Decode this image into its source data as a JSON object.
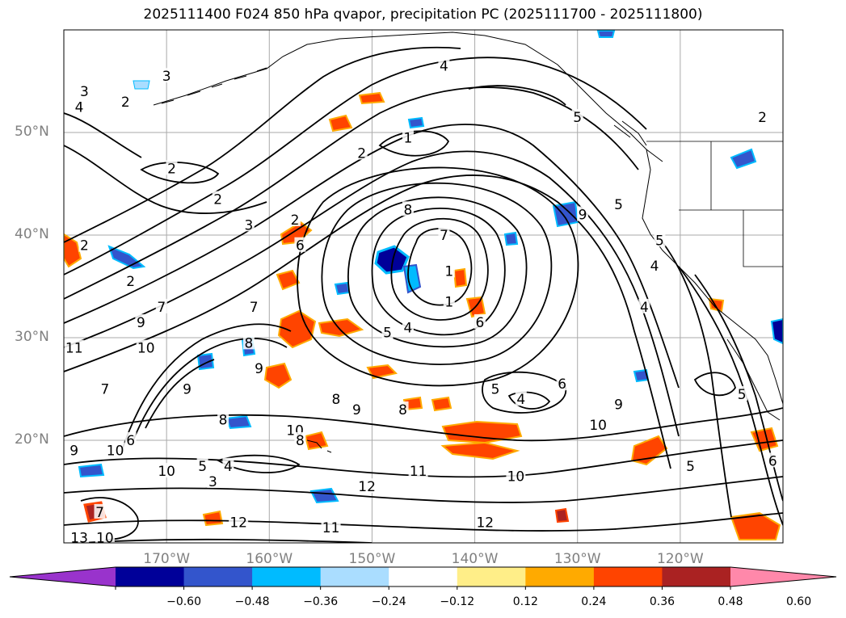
{
  "title": "2025111400 F024 850 hPa qvapor, precipitation PC (2025111700 - 2025111800)",
  "map": {
    "extent": {
      "lon_min": -180,
      "lon_max": -110,
      "lat_min": 10,
      "lat_max": 60
    },
    "lat_labels": [
      {
        "lat": 50,
        "text": "50°N"
      },
      {
        "lat": 40,
        "text": "40°N"
      },
      {
        "lat": 30,
        "text": "30°N"
      },
      {
        "lat": 20,
        "text": "20°N"
      }
    ],
    "lon_labels": [
      {
        "lon": -170,
        "text": "170°W"
      },
      {
        "lon": -160,
        "text": "160°W"
      },
      {
        "lon": -150,
        "text": "150°W"
      },
      {
        "lon": -140,
        "text": "140°W"
      },
      {
        "lon": -130,
        "text": "130°W"
      },
      {
        "lon": -120,
        "text": "120°W"
      }
    ],
    "gridlines": true,
    "contour_labels": [
      {
        "text": "4",
        "lon": -143,
        "lat": 56.5
      },
      {
        "text": "3",
        "lon": -170,
        "lat": 55.5
      },
      {
        "text": "3",
        "lon": -178,
        "lat": 54
      },
      {
        "text": "2",
        "lon": -174,
        "lat": 53
      },
      {
        "text": "4",
        "lon": -178.5,
        "lat": 52.5
      },
      {
        "text": "5",
        "lon": -130,
        "lat": 51.5
      },
      {
        "text": "2",
        "lon": -112,
        "lat": 51.5
      },
      {
        "text": "1",
        "lon": -146.5,
        "lat": 49.5
      },
      {
        "text": "2",
        "lon": -151,
        "lat": 48
      },
      {
        "text": "2",
        "lon": -169.5,
        "lat": 46.5
      },
      {
        "text": "2",
        "lon": -165,
        "lat": 43.5
      },
      {
        "text": "8",
        "lon": -146.5,
        "lat": 42.5
      },
      {
        "text": "9",
        "lon": -129.5,
        "lat": 42
      },
      {
        "text": "5",
        "lon": -126,
        "lat": 43
      },
      {
        "text": "3",
        "lon": -162,
        "lat": 41
      },
      {
        "text": "2",
        "lon": -157.5,
        "lat": 41.5
      },
      {
        "text": "2",
        "lon": -178,
        "lat": 39
      },
      {
        "text": "5",
        "lon": -122,
        "lat": 39.5
      },
      {
        "text": "6",
        "lon": -157,
        "lat": 39
      },
      {
        "text": "7",
        "lon": -143,
        "lat": 40
      },
      {
        "text": "1",
        "lon": -142.5,
        "lat": 36.5
      },
      {
        "text": "4",
        "lon": -122.5,
        "lat": 37
      },
      {
        "text": "2",
        "lon": -173.5,
        "lat": 35.5
      },
      {
        "text": "1",
        "lon": -142.5,
        "lat": 33.5
      },
      {
        "text": "7",
        "lon": -170.5,
        "lat": 33
      },
      {
        "text": "4",
        "lon": -123.5,
        "lat": 33
      },
      {
        "text": "7",
        "lon": -161.5,
        "lat": 33
      },
      {
        "text": "9",
        "lon": -172.5,
        "lat": 31.5
      },
      {
        "text": "6",
        "lon": -139.5,
        "lat": 31.5
      },
      {
        "text": "5",
        "lon": -148.5,
        "lat": 30.5
      },
      {
        "text": "4",
        "lon": -146.5,
        "lat": 31
      },
      {
        "text": "11",
        "lon": -179,
        "lat": 29
      },
      {
        "text": "10",
        "lon": -172,
        "lat": 29
      },
      {
        "text": "8",
        "lon": -162,
        "lat": 29.5
      },
      {
        "text": "9",
        "lon": -161,
        "lat": 27
      },
      {
        "text": "5",
        "lon": -138,
        "lat": 25
      },
      {
        "text": "6",
        "lon": -131.5,
        "lat": 25.5
      },
      {
        "text": "7",
        "lon": -176,
        "lat": 25
      },
      {
        "text": "9",
        "lon": -168,
        "lat": 25
      },
      {
        "text": "5",
        "lon": -114,
        "lat": 24.5
      },
      {
        "text": "8",
        "lon": -153.5,
        "lat": 24
      },
      {
        "text": "4",
        "lon": -135.5,
        "lat": 24
      },
      {
        "text": "9",
        "lon": -151.5,
        "lat": 23
      },
      {
        "text": "8",
        "lon": -147,
        "lat": 23
      },
      {
        "text": "9",
        "lon": -126,
        "lat": 23.5
      },
      {
        "text": "8",
        "lon": -164.5,
        "lat": 22
      },
      {
        "text": "10",
        "lon": -157.5,
        "lat": 21
      },
      {
        "text": "10",
        "lon": -128,
        "lat": 21.5
      },
      {
        "text": "6",
        "lon": -173.5,
        "lat": 20
      },
      {
        "text": "8",
        "lon": -157,
        "lat": 20
      },
      {
        "text": "9",
        "lon": -179,
        "lat": 19
      },
      {
        "text": "10",
        "lon": -175,
        "lat": 19
      },
      {
        "text": "5",
        "lon": -166.5,
        "lat": 17.5
      },
      {
        "text": "11",
        "lon": -145.5,
        "lat": 17
      },
      {
        "text": "4",
        "lon": -164,
        "lat": 17.5
      },
      {
        "text": "10",
        "lon": -170,
        "lat": 17
      },
      {
        "text": "5",
        "lon": -119,
        "lat": 17.5
      },
      {
        "text": "6",
        "lon": -111,
        "lat": 18
      },
      {
        "text": "3",
        "lon": -165.5,
        "lat": 16
      },
      {
        "text": "12",
        "lon": -150.5,
        "lat": 15.5
      },
      {
        "text": "10",
        "lon": -136,
        "lat": 16.5
      },
      {
        "text": "12",
        "lon": -163,
        "lat": 12
      },
      {
        "text": "11",
        "lon": -154,
        "lat": 11.5
      },
      {
        "text": "12",
        "lon": -139,
        "lat": 12
      },
      {
        "text": "7",
        "lon": -176.5,
        "lat": 13
      },
      {
        "text": "13",
        "lon": -178.5,
        "lat": 10.5
      },
      {
        "text": "10",
        "lon": -176,
        "lat": 10.5
      }
    ]
  },
  "colorbar": {
    "colors": [
      "#9933cc",
      "#000099",
      "#3355cc",
      "#00bbff",
      "#aaddff",
      "#ffffff",
      "#ffee88",
      "#ffaa00",
      "#ff4400",
      "#aa2222",
      "#ff88aa"
    ],
    "labels": [
      "−0.60",
      "−0.48",
      "−0.36",
      "−0.24",
      "−0.12",
      "0.12",
      "0.24",
      "0.36",
      "0.48",
      "0.60"
    ]
  }
}
